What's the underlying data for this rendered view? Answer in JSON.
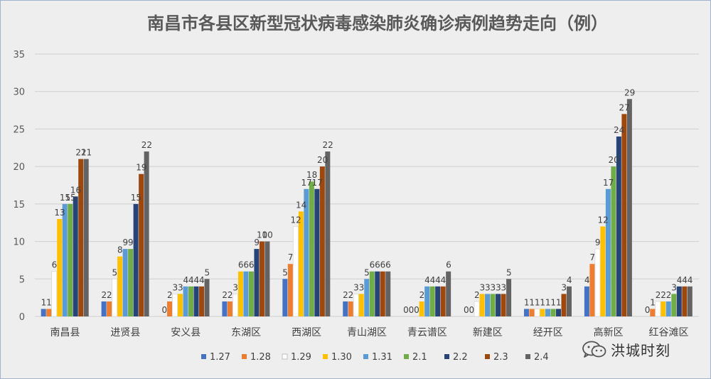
{
  "chart_data": {
    "type": "bar",
    "title": "南昌市各县区新型冠状病毒感染肺炎确诊病例趋势走向（例）",
    "xlabel": "",
    "ylabel": "",
    "ylim": [
      0,
      35
    ],
    "yticks": [
      0,
      5,
      10,
      15,
      20,
      25,
      30,
      35
    ],
    "grid": true,
    "legend_position": "bottom",
    "categories": [
      "南昌县",
      "进贤县",
      "安义县",
      "东湖区",
      "西湖区",
      "青山湖区",
      "青云谱区",
      "新建区",
      "经开区",
      "高新区",
      "红谷滩区"
    ],
    "series": [
      {
        "name": "1.27",
        "color": "#4472c4",
        "values": [
          1,
          2,
          0,
          2,
          5,
          2,
          0,
          0,
          1,
          4,
          0
        ]
      },
      {
        "name": "1.28",
        "color": "#ed7d31",
        "values": [
          1,
          2,
          2,
          2,
          7,
          2,
          0,
          0,
          1,
          7,
          1
        ]
      },
      {
        "name": "1.29",
        "color": "#ffffff",
        "values": [
          6,
          5,
          3,
          3,
          12,
          3,
          0,
          2,
          1,
          9,
          2
        ]
      },
      {
        "name": "1.30",
        "color": "#ffc000",
        "values": [
          13,
          8,
          3,
          6,
          14,
          3,
          2,
          3,
          1,
          12,
          2
        ]
      },
      {
        "name": "1.31",
        "color": "#5b9bd5",
        "values": [
          15,
          9,
          4,
          6,
          17,
          5,
          4,
          3,
          1,
          17,
          2
        ]
      },
      {
        "name": "2.1",
        "color": "#70ad47",
        "values": [
          15,
          9,
          4,
          6,
          18,
          6,
          4,
          3,
          1,
          20,
          3
        ]
      },
      {
        "name": "2.2",
        "color": "#264478",
        "values": [
          16,
          15,
          4,
          9,
          17,
          6,
          4,
          3,
          1,
          24,
          4
        ]
      },
      {
        "name": "2.3",
        "color": "#9e480e",
        "values": [
          21,
          19,
          4,
          10,
          20,
          6,
          4,
          3,
          3,
          27,
          4
        ]
      },
      {
        "name": "2.4",
        "color": "#636363",
        "values": [
          21,
          22,
          5,
          10,
          22,
          6,
          6,
          5,
          4,
          29,
          4
        ]
      }
    ]
  },
  "watermark": {
    "text": "洪城时刻",
    "icon": "wechat-icon"
  }
}
